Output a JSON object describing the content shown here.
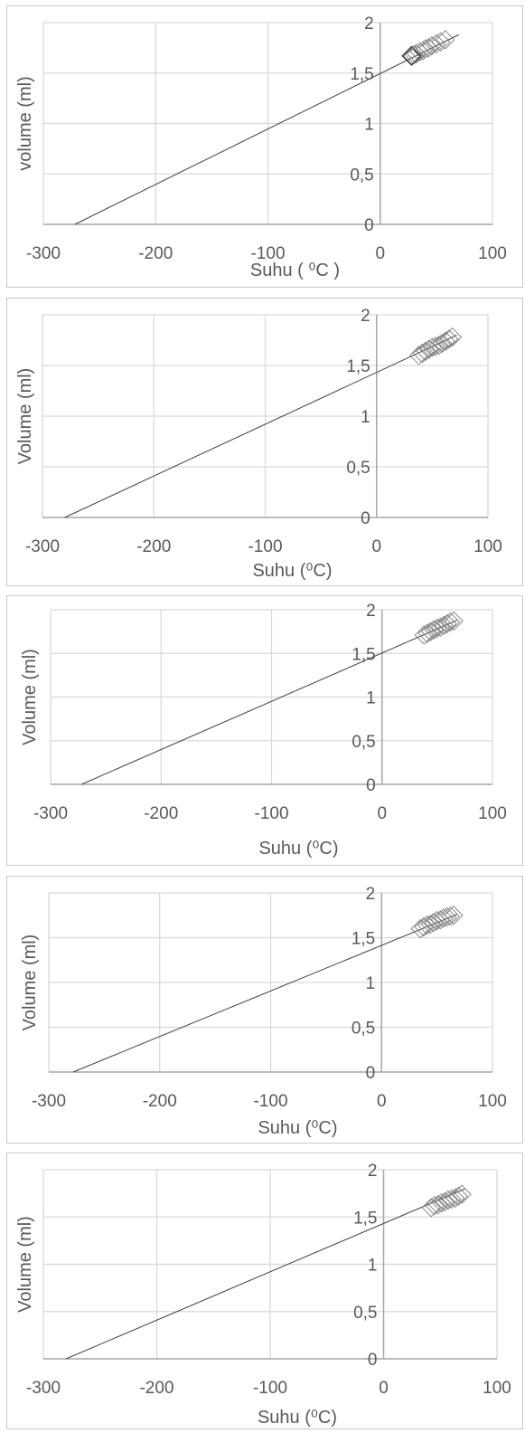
{
  "charts": [
    {
      "type": "scatter",
      "xlabel": "Suhu ( ⁰C )",
      "ylabel": "volume (ml)",
      "xticks": [
        "-300",
        "-200",
        "-100",
        "0",
        "100"
      ],
      "yticks": [
        "0",
        "0,5",
        "1",
        "1,5",
        "2"
      ],
      "xlim": [
        -300,
        100
      ],
      "ylim": [
        0,
        2
      ],
      "grid": true,
      "trendline": {
        "x": [
          -272,
          70
        ],
        "y": [
          0,
          1.88
        ]
      },
      "points": [
        [
          28,
          1.67
        ],
        [
          30,
          1.68
        ],
        [
          32,
          1.69
        ],
        [
          35,
          1.71
        ],
        [
          38,
          1.72
        ],
        [
          40,
          1.74
        ],
        [
          43,
          1.75
        ],
        [
          46,
          1.77
        ],
        [
          50,
          1.79
        ],
        [
          54,
          1.81
        ],
        [
          58,
          1.83
        ]
      ],
      "colors": {
        "grid": "#d9d9d9",
        "axis": "#a6a6a6",
        "line": "#404040",
        "marker": "#7f7f7f"
      }
    },
    {
      "type": "scatter",
      "xlabel": "Suhu (⁰C)",
      "ylabel": "Volume (ml)",
      "xticks": [
        "-300",
        "-200",
        "-100",
        "0",
        "100"
      ],
      "yticks": [
        "0",
        "0,5",
        "1",
        "1,5",
        "2"
      ],
      "xlim": [
        -300,
        100
      ],
      "ylim": [
        0,
        2
      ],
      "grid": true,
      "trendline": {
        "x": [
          -280,
          72
        ],
        "y": [
          0,
          1.8
        ]
      },
      "points": [
        [
          38,
          1.6
        ],
        [
          41,
          1.62
        ],
        [
          44,
          1.64
        ],
        [
          47,
          1.66
        ],
        [
          50,
          1.68
        ],
        [
          53,
          1.69
        ],
        [
          56,
          1.7
        ],
        [
          59,
          1.72
        ],
        [
          62,
          1.74
        ],
        [
          65,
          1.76
        ],
        [
          68,
          1.78
        ]
      ],
      "colors": {
        "grid": "#d9d9d9",
        "axis": "#a6a6a6",
        "line": "#404040",
        "marker": "#7f7f7f"
      }
    },
    {
      "type": "scatter",
      "xlabel": "Suhu (⁰C)",
      "ylabel": "Volume (ml)",
      "xticks": [
        "-300",
        "-200",
        "-100",
        "0",
        "100"
      ],
      "yticks": [
        "0",
        "0,5",
        "1",
        "1,5",
        "2"
      ],
      "xlim": [
        -300,
        100
      ],
      "ylim": [
        0,
        2
      ],
      "grid": true,
      "trendline": {
        "x": [
          -272,
          68
        ],
        "y": [
          0,
          1.88
        ]
      },
      "points": [
        [
          38,
          1.71
        ],
        [
          41,
          1.73
        ],
        [
          44,
          1.75
        ],
        [
          47,
          1.77
        ],
        [
          50,
          1.79
        ],
        [
          53,
          1.8
        ],
        [
          56,
          1.82
        ],
        [
          59,
          1.84
        ],
        [
          62,
          1.86
        ],
        [
          65,
          1.87
        ]
      ],
      "colors": {
        "grid": "#d9d9d9",
        "axis": "#a6a6a6",
        "line": "#404040",
        "marker": "#7f7f7f"
      }
    },
    {
      "type": "scatter",
      "xlabel": "Suhu (⁰C)",
      "ylabel": "Volume (ml)",
      "xticks": [
        "-300",
        "-200",
        "-100",
        "0",
        "100"
      ],
      "yticks": [
        "0",
        "0,5",
        "1",
        "1,5",
        "2"
      ],
      "xlim": [
        -300,
        100
      ],
      "ylim": [
        0,
        2
      ],
      "grid": true,
      "trendline": {
        "x": [
          -278,
          68
        ],
        "y": [
          0,
          1.76
        ]
      },
      "points": [
        [
          35,
          1.6
        ],
        [
          38,
          1.62
        ],
        [
          41,
          1.64
        ],
        [
          44,
          1.65
        ],
        [
          47,
          1.67
        ],
        [
          50,
          1.69
        ],
        [
          53,
          1.7
        ],
        [
          56,
          1.72
        ],
        [
          59,
          1.73
        ],
        [
          62,
          1.74
        ],
        [
          65,
          1.75
        ]
      ],
      "colors": {
        "grid": "#d9d9d9",
        "axis": "#a6a6a6",
        "line": "#404040",
        "marker": "#7f7f7f"
      }
    },
    {
      "type": "scatter",
      "xlabel": "Suhu (⁰C)",
      "ylabel": "Volume (ml)",
      "xticks": [
        "-300",
        "-200",
        "-100",
        "0",
        "100"
      ],
      "yticks": [
        "0",
        "0,5",
        "1",
        "1,5",
        "2"
      ],
      "xlim": [
        -300,
        100
      ],
      "ylim": [
        0,
        2
      ],
      "grid": true,
      "trendline": {
        "x": [
          -280,
          72
        ],
        "y": [
          0,
          1.8
        ]
      },
      "points": [
        [
          42,
          1.6
        ],
        [
          45,
          1.62
        ],
        [
          48,
          1.63
        ],
        [
          51,
          1.65
        ],
        [
          54,
          1.66
        ],
        [
          57,
          1.68
        ],
        [
          60,
          1.69
        ],
        [
          63,
          1.7
        ],
        [
          66,
          1.72
        ],
        [
          69,
          1.74
        ]
      ],
      "colors": {
        "grid": "#d9d9d9",
        "axis": "#a6a6a6",
        "line": "#404040",
        "marker": "#7f7f7f"
      }
    }
  ]
}
